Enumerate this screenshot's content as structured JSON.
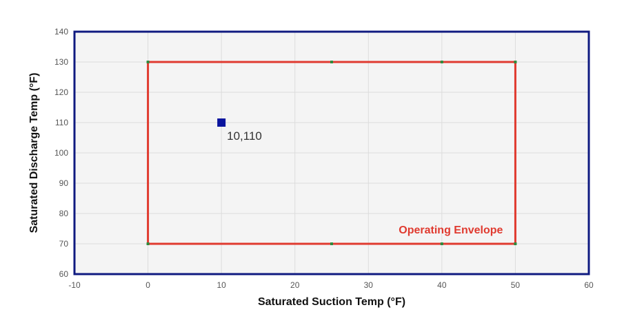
{
  "chart_data": {
    "type": "scatter",
    "title": "",
    "xlabel": "Saturated Suction Temp (°F)",
    "ylabel": "Saturated Discharge Temp (°F)",
    "xlim": [
      -10,
      60
    ],
    "ylim": [
      60,
      140
    ],
    "xticks": [
      -10,
      0,
      10,
      20,
      30,
      40,
      50,
      60
    ],
    "yticks": [
      60,
      70,
      80,
      90,
      100,
      110,
      120,
      130,
      140
    ],
    "grid": true,
    "envelope": {
      "label": "Operating Envelope",
      "color": "#e03a2f",
      "vertex_color": "#2e8b3e",
      "polygon": [
        [
          0,
          70
        ],
        [
          0,
          130
        ],
        [
          25,
          130
        ],
        [
          40,
          130
        ],
        [
          50,
          130
        ],
        [
          50,
          70
        ],
        [
          40,
          70
        ],
        [
          25,
          70
        ],
        [
          0,
          70
        ]
      ]
    },
    "operating_point": {
      "x": 10,
      "y": 110,
      "label": "10,110",
      "color": "#0a149e",
      "marker": "square"
    }
  },
  "colors": {
    "plot_background": "#f4f4f4",
    "plot_border": "#0f1a80",
    "grid": "#dcdcdc"
  }
}
